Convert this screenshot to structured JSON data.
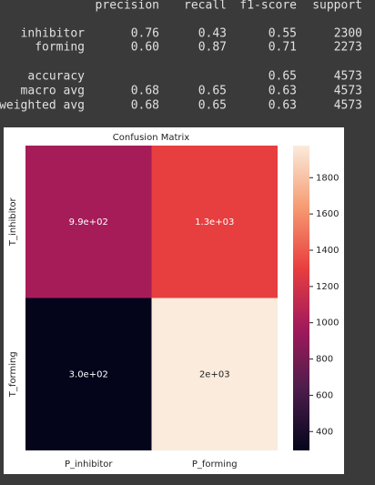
{
  "report": {
    "columns": [
      "precision",
      "recall",
      "f1-score",
      "support"
    ],
    "rows": [
      {
        "label": "inhibitor",
        "cells": [
          "0.76",
          "0.43",
          "0.55",
          "2300"
        ]
      },
      {
        "label": "forming",
        "cells": [
          "0.60",
          "0.87",
          "0.71",
          "2273"
        ]
      },
      {
        "label": "accuracy",
        "cells": [
          null,
          null,
          "0.65",
          "4573"
        ]
      },
      {
        "label": "macro avg",
        "cells": [
          "0.68",
          "0.65",
          "0.63",
          "4573"
        ]
      },
      {
        "label": "weighted avg",
        "cells": [
          "0.68",
          "0.65",
          "0.63",
          "4573"
        ]
      }
    ]
  },
  "chart_data": {
    "type": "heatmap",
    "title": "Confusion Matrix",
    "x_categories": [
      "P_inhibitor",
      "P_forming"
    ],
    "y_categories": [
      "T_inhibitor",
      "T_forming"
    ],
    "values": [
      [
        990,
        1300
      ],
      [
        300,
        2000
      ]
    ],
    "value_labels": [
      [
        "9.9e+02",
        "1.3e+03"
      ],
      [
        "3.0e+02",
        "2e+03"
      ]
    ],
    "zlim": [
      296,
      1977
    ],
    "zticks": [
      400,
      600,
      800,
      1000,
      1200,
      1400,
      1600,
      1800
    ],
    "colorscale": [
      "#03051a",
      "#4c1d4b",
      "#a11a5b",
      "#e83f3f",
      "#f69c73",
      "#faebdd"
    ]
  }
}
